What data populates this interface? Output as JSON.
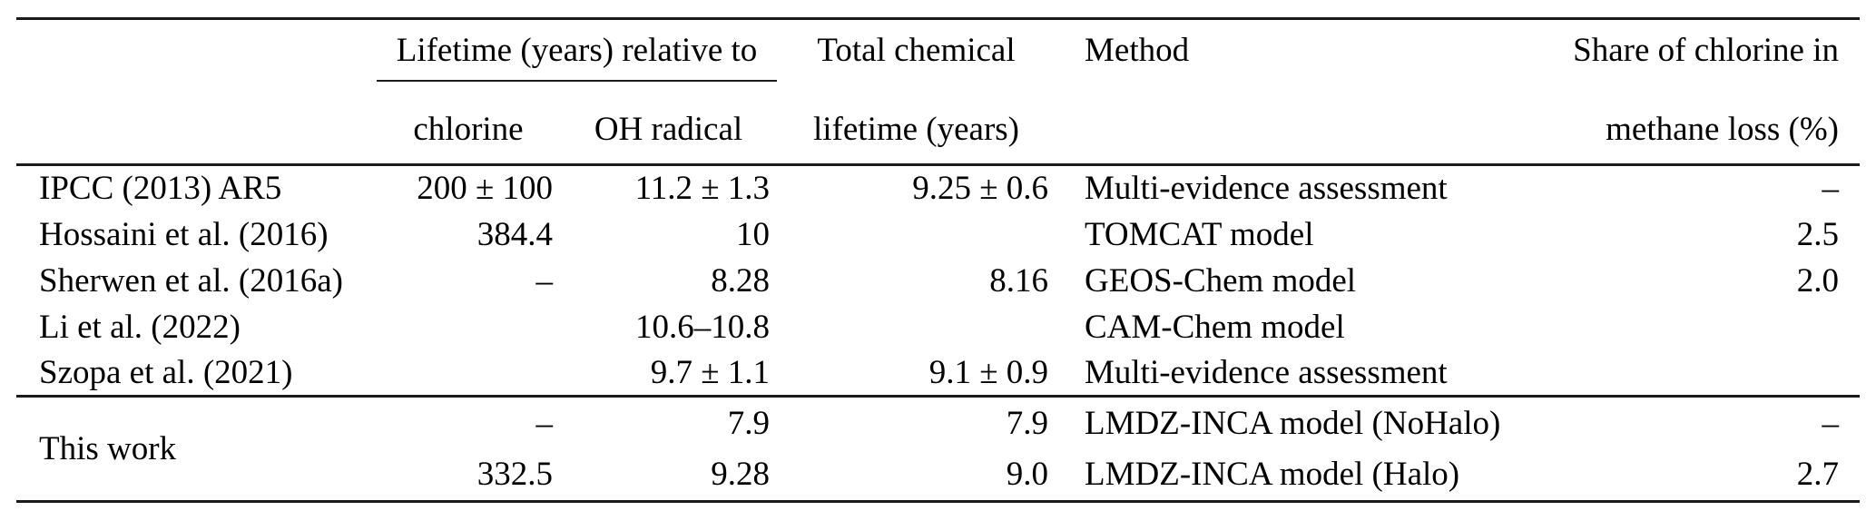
{
  "table": {
    "header": {
      "lifetime_group": "Lifetime (years) relative to",
      "col_chlorine": "chlorine",
      "col_oh_radical": "OH radical",
      "col_total_line1": "Total chemical",
      "col_total_line2": "lifetime (years)",
      "col_method": "Method",
      "col_share_line1": "Share of chlorine in",
      "col_share_line2": "methane loss (%)"
    },
    "rows": [
      {
        "study": "IPCC (2013) AR5",
        "chlorine": "200 ± 100",
        "oh_radical": "11.2 ± 1.3",
        "total_lifetime": "9.25 ± 0.6",
        "method": "Multi-evidence assessment",
        "share": "–"
      },
      {
        "study": "Hossaini et al. (2016)",
        "chlorine": "384.4",
        "oh_radical": "10",
        "total_lifetime": "",
        "method": "TOMCAT model",
        "share": "2.5"
      },
      {
        "study": "Sherwen et al. (2016a)",
        "chlorine": "–",
        "oh_radical": "8.28",
        "total_lifetime": "8.16",
        "method": "GEOS-Chem model",
        "share": "2.0"
      },
      {
        "study": "Li et al. (2022)",
        "chlorine": "",
        "oh_radical": "10.6–10.8",
        "total_lifetime": "",
        "method": "CAM-Chem model",
        "share": ""
      },
      {
        "study": "Szopa et al. (2021)",
        "chlorine": "",
        "oh_radical": "9.7 ± 1.1",
        "total_lifetime": "9.1 ± 0.9",
        "method": "Multi-evidence assessment",
        "share": ""
      }
    ],
    "this_work": {
      "study": "This work",
      "rows": [
        {
          "chlorine": "–",
          "oh_radical": "7.9",
          "total_lifetime": "7.9",
          "method": "LMDZ-INCA model (NoHalo)",
          "share": "–"
        },
        {
          "chlorine": "332.5",
          "oh_radical": "9.28",
          "total_lifetime": "9.0",
          "method": "LMDZ-INCA model (Halo)",
          "share": "2.7"
        }
      ]
    }
  },
  "colors": {
    "text": "#000000",
    "rule": "#1a1a1a",
    "background": "#ffffff"
  }
}
